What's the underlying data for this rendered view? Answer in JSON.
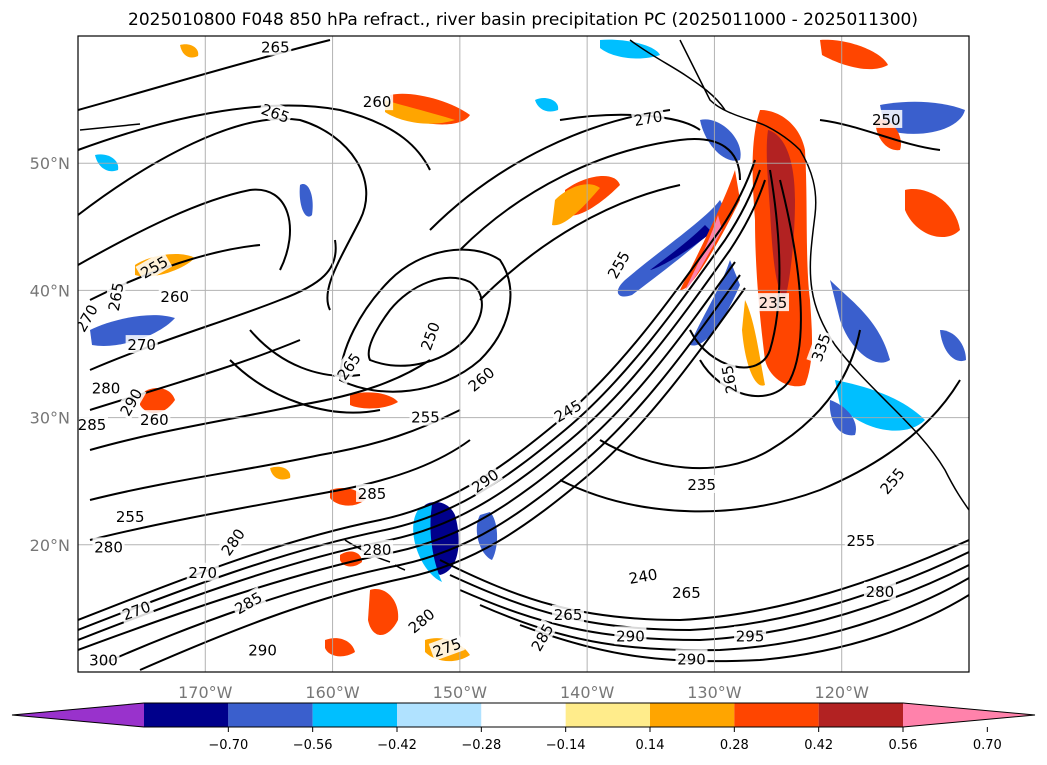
{
  "title": "2025010800 F048 850 hPa refract., river basin precipitation PC (2025011000 - 2025011300)",
  "map": {
    "lat_labels": [
      "50°N",
      "40°N",
      "30°N",
      "20°N"
    ],
    "lon_labels": [
      "170°W",
      "160°W",
      "150°W",
      "140°W",
      "130°W",
      "120°W"
    ],
    "lat_values": [
      50,
      40,
      30,
      20
    ],
    "lon_values": [
      -170,
      -160,
      -150,
      -140,
      -130,
      -120
    ],
    "extent": {
      "lon": [
        -180,
        -110
      ],
      "lat": [
        10,
        60
      ]
    },
    "contour_labels": [
      {
        "text": "265",
        "lon": -164.5,
        "lat": 59.1,
        "rot": 0
      },
      {
        "text": "260",
        "lon": -156.5,
        "lat": 54.8,
        "rot": 0
      },
      {
        "text": "265",
        "lon": -164.5,
        "lat": 53.9,
        "rot": 20
      },
      {
        "text": "270",
        "lon": -135.2,
        "lat": 53.5,
        "rot": -10
      },
      {
        "text": "250",
        "lon": -116.5,
        "lat": 53.4,
        "rot": 0
      },
      {
        "text": "255",
        "lon": -174.0,
        "lat": 41.8,
        "rot": -30
      },
      {
        "text": "260",
        "lon": -172.4,
        "lat": 39.5,
        "rot": 0
      },
      {
        "text": "265",
        "lon": -177.0,
        "lat": 39.5,
        "rot": -80
      },
      {
        "text": "270",
        "lon": -179.3,
        "lat": 37.8,
        "rot": -60
      },
      {
        "text": "270",
        "lon": -175.0,
        "lat": 35.7,
        "rot": 0
      },
      {
        "text": "250",
        "lon": -152.3,
        "lat": 36.4,
        "rot": -70
      },
      {
        "text": "265",
        "lon": -158.7,
        "lat": 34.0,
        "rot": -55
      },
      {
        "text": "280",
        "lon": -177.8,
        "lat": 32.3,
        "rot": 0
      },
      {
        "text": "290",
        "lon": -175.8,
        "lat": 31.2,
        "rot": -60
      },
      {
        "text": "255",
        "lon": -152.7,
        "lat": 30.0,
        "rot": 0
      },
      {
        "text": "260",
        "lon": -174.0,
        "lat": 29.8,
        "rot": 0
      },
      {
        "text": "285",
        "lon": -178.9,
        "lat": 29.4,
        "rot": 0
      },
      {
        "text": "245",
        "lon": -141.5,
        "lat": 30.5,
        "rot": -30
      },
      {
        "text": "235",
        "lon": -131.0,
        "lat": 24.7,
        "rot": 0
      },
      {
        "text": "290",
        "lon": -148.0,
        "lat": 25.0,
        "rot": -35
      },
      {
        "text": "285",
        "lon": -156.9,
        "lat": 24.0,
        "rot": 0
      },
      {
        "text": "255",
        "lon": -116.0,
        "lat": 25.0,
        "rot": -50
      },
      {
        "text": "255",
        "lon": -175.9,
        "lat": 22.2,
        "rot": 0
      },
      {
        "text": "280",
        "lon": -177.6,
        "lat": 19.8,
        "rot": 0
      },
      {
        "text": "280",
        "lon": -167.8,
        "lat": 20.2,
        "rot": -55
      },
      {
        "text": "280",
        "lon": -156.5,
        "lat": 19.6,
        "rot": 0
      },
      {
        "text": "270",
        "lon": -170.2,
        "lat": 17.8,
        "rot": 0
      },
      {
        "text": "255",
        "lon": -118.5,
        "lat": 20.3,
        "rot": 0
      },
      {
        "text": "240",
        "lon": -135.6,
        "lat": 17.5,
        "rot": -10
      },
      {
        "text": "265",
        "lon": -132.2,
        "lat": 16.2,
        "rot": 0
      },
      {
        "text": "265",
        "lon": -141.5,
        "lat": 14.5,
        "rot": 0
      },
      {
        "text": "280",
        "lon": -117.0,
        "lat": 16.3,
        "rot": 0
      },
      {
        "text": "290",
        "lon": -136.6,
        "lat": 12.8,
        "rot": 0
      },
      {
        "text": "295",
        "lon": -127.2,
        "lat": 12.8,
        "rot": 0
      },
      {
        "text": "280",
        "lon": -153.0,
        "lat": 14.0,
        "rot": -40
      },
      {
        "text": "285",
        "lon": -143.5,
        "lat": 12.7,
        "rot": -60
      },
      {
        "text": "275",
        "lon": -151.0,
        "lat": 11.9,
        "rot": -20
      },
      {
        "text": "290",
        "lon": -165.5,
        "lat": 11.7,
        "rot": 0
      },
      {
        "text": "290",
        "lon": -131.8,
        "lat": 11.0,
        "rot": 0
      },
      {
        "text": "300",
        "lon": -178.0,
        "lat": 10.9,
        "rot": 0
      },
      {
        "text": "270",
        "lon": -175.4,
        "lat": 14.8,
        "rot": -20
      },
      {
        "text": "285",
        "lon": -166.6,
        "lat": 15.4,
        "rot": -30
      },
      {
        "text": "235",
        "lon": -125.4,
        "lat": 39.0,
        "rot": 0
      },
      {
        "text": "265",
        "lon": -128.8,
        "lat": 33.0,
        "rot": -100
      },
      {
        "text": "335",
        "lon": -121.6,
        "lat": 35.5,
        "rot": -70
      },
      {
        "text": "255",
        "lon": -137.5,
        "lat": 42.0,
        "rot": -60
      },
      {
        "text": "260",
        "lon": -148.3,
        "lat": 33.0,
        "rot": -40
      }
    ]
  },
  "colorbar": {
    "tick_labels": [
      "−0.70",
      "−0.56",
      "−0.42",
      "−0.28",
      "−0.14",
      "0.14",
      "0.28",
      "0.42",
      "0.56",
      "0.70"
    ],
    "colors": [
      "#9932cc",
      "#00008b",
      "#3a5fcd",
      "#00bfff",
      "#b0e2ff",
      "#ffffff",
      "#ffec8b",
      "#ffa500",
      "#ff4500",
      "#b22222",
      "#ff82ab"
    ],
    "line_color": "#000000",
    "grid_color": "#aaaaaa"
  }
}
